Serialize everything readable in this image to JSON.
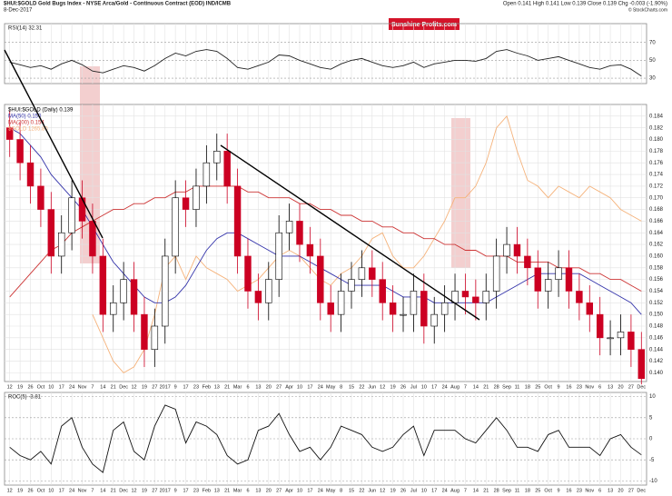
{
  "header": {
    "title": "$HUI:$GOLD Gold Bugs Index - NYSE Arca/Gold - Continuous Contract (EOD) IND/ICMB",
    "date": "8-Dec-2017",
    "quote": "Open 0.141 High 0.141 Low 0.139 Close 0.139 Chg -0.003 (-1.90%)",
    "credit": "© StockCharts.com",
    "logo": "Sunshine Profits.com"
  },
  "chart_data": [
    {
      "type": "candlestick",
      "name": "$HUI:$GOLD (Daily) 0.139",
      "up_color": "#000000",
      "down_color": "#cc0022",
      "categories": [
        "12",
        "19",
        "26",
        "Oct",
        "10",
        "17",
        "24",
        "Nov",
        "7",
        "14",
        "21",
        "Dec",
        "12",
        "19",
        "27",
        "2017",
        "9",
        "17",
        "23",
        "Feb",
        "13",
        "21",
        "Mar",
        "6",
        "13",
        "20",
        "27",
        "Apr",
        "10",
        "17",
        "24",
        "May",
        "8",
        "15",
        "22",
        "Jun",
        "12",
        "19",
        "26",
        "Jul",
        "10",
        "17",
        "24",
        "Aug",
        "7",
        "14",
        "21",
        "28",
        "Sep",
        "11",
        "18",
        "25",
        "Oct",
        "9",
        "16",
        "23",
        "Nov",
        "6",
        "13",
        "20",
        "27",
        "Dec"
      ],
      "open": [
        0.182,
        0.18,
        0.176,
        0.172,
        0.168,
        0.16,
        0.164,
        0.17,
        0.166,
        0.16,
        0.15,
        0.152,
        0.156,
        0.15,
        0.144,
        0.148,
        0.16,
        0.17,
        0.168,
        0.172,
        0.176,
        0.178,
        0.172,
        0.16,
        0.154,
        0.152,
        0.156,
        0.164,
        0.166,
        0.162,
        0.16,
        0.152,
        0.15,
        0.154,
        0.156,
        0.158,
        0.156,
        0.152,
        0.15,
        0.15,
        0.154,
        0.148,
        0.15,
        0.152,
        0.154,
        0.153,
        0.152,
        0.154,
        0.16,
        0.162,
        0.16,
        0.158,
        0.154,
        0.156,
        0.158,
        0.154,
        0.152,
        0.15,
        0.146,
        0.146,
        0.147,
        0.144
      ],
      "high": [
        0.185,
        0.183,
        0.179,
        0.175,
        0.171,
        0.167,
        0.173,
        0.173,
        0.169,
        0.163,
        0.155,
        0.159,
        0.159,
        0.153,
        0.151,
        0.163,
        0.173,
        0.173,
        0.175,
        0.179,
        0.181,
        0.181,
        0.175,
        0.163,
        0.157,
        0.159,
        0.167,
        0.169,
        0.169,
        0.165,
        0.163,
        0.155,
        0.157,
        0.159,
        0.161,
        0.161,
        0.159,
        0.155,
        0.153,
        0.157,
        0.157,
        0.153,
        0.155,
        0.157,
        0.157,
        0.156,
        0.157,
        0.163,
        0.165,
        0.165,
        0.163,
        0.161,
        0.159,
        0.161,
        0.161,
        0.157,
        0.155,
        0.153,
        0.149,
        0.15,
        0.15,
        0.147
      ],
      "low": [
        0.177,
        0.173,
        0.169,
        0.165,
        0.157,
        0.157,
        0.161,
        0.163,
        0.157,
        0.147,
        0.147,
        0.149,
        0.147,
        0.141,
        0.141,
        0.145,
        0.157,
        0.165,
        0.165,
        0.169,
        0.173,
        0.169,
        0.157,
        0.151,
        0.149,
        0.149,
        0.153,
        0.161,
        0.159,
        0.157,
        0.149,
        0.147,
        0.147,
        0.151,
        0.153,
        0.153,
        0.149,
        0.147,
        0.147,
        0.147,
        0.145,
        0.145,
        0.147,
        0.149,
        0.15,
        0.149,
        0.149,
        0.151,
        0.157,
        0.157,
        0.155,
        0.151,
        0.151,
        0.153,
        0.151,
        0.149,
        0.147,
        0.143,
        0.143,
        0.143,
        0.141,
        0.138
      ],
      "close": [
        0.18,
        0.176,
        0.172,
        0.168,
        0.16,
        0.164,
        0.17,
        0.166,
        0.16,
        0.15,
        0.152,
        0.156,
        0.15,
        0.144,
        0.148,
        0.16,
        0.17,
        0.168,
        0.172,
        0.176,
        0.178,
        0.172,
        0.16,
        0.154,
        0.152,
        0.156,
        0.164,
        0.166,
        0.162,
        0.16,
        0.152,
        0.15,
        0.154,
        0.156,
        0.158,
        0.156,
        0.152,
        0.15,
        0.15,
        0.154,
        0.148,
        0.15,
        0.152,
        0.154,
        0.153,
        0.152,
        0.154,
        0.16,
        0.162,
        0.16,
        0.158,
        0.154,
        0.156,
        0.158,
        0.154,
        0.152,
        0.15,
        0.146,
        0.146,
        0.147,
        0.144,
        0.139
      ],
      "series": [
        {
          "name": "MA(50) 0.150",
          "color": "#3333aa",
          "values": [
            0.182,
            0.181,
            0.179,
            0.177,
            0.174,
            0.172,
            0.17,
            0.168,
            0.165,
            0.162,
            0.159,
            0.157,
            0.155,
            0.153,
            0.152,
            0.152,
            0.153,
            0.155,
            0.158,
            0.161,
            0.163,
            0.164,
            0.164,
            0.163,
            0.162,
            0.161,
            0.16,
            0.16,
            0.16,
            0.159,
            0.158,
            0.157,
            0.156,
            0.155,
            0.155,
            0.155,
            0.155,
            0.154,
            0.153,
            0.153,
            0.153,
            0.152,
            0.152,
            0.152,
            0.152,
            0.152,
            0.152,
            0.153,
            0.154,
            0.155,
            0.156,
            0.157,
            0.157,
            0.157,
            0.157,
            0.157,
            0.156,
            0.155,
            0.154,
            0.153,
            0.152,
            0.15
          ]
        },
        {
          "name": "MA(200) 0.154",
          "color": "#cc3333",
          "values": [
            0.153,
            0.155,
            0.157,
            0.159,
            0.161,
            0.162,
            0.164,
            0.165,
            0.166,
            0.167,
            0.168,
            0.168,
            0.169,
            0.169,
            0.17,
            0.17,
            0.171,
            0.171,
            0.172,
            0.172,
            0.172,
            0.172,
            0.172,
            0.171,
            0.171,
            0.17,
            0.17,
            0.17,
            0.169,
            0.169,
            0.168,
            0.168,
            0.167,
            0.167,
            0.166,
            0.166,
            0.165,
            0.165,
            0.164,
            0.164,
            0.163,
            0.163,
            0.162,
            0.162,
            0.161,
            0.161,
            0.16,
            0.16,
            0.16,
            0.159,
            0.159,
            0.159,
            0.159,
            0.158,
            0.158,
            0.158,
            0.157,
            0.157,
            0.156,
            0.156,
            0.155,
            0.154
          ]
        },
        {
          "name": "$GOLD 1265.80",
          "color": "#f5b27a",
          "values": [
            null,
            null,
            null,
            null,
            null,
            null,
            null,
            null,
            0.15,
            0.146,
            0.142,
            0.14,
            0.141,
            0.144,
            0.15,
            0.158,
            0.16,
            0.156,
            0.16,
            0.158,
            0.157,
            0.156,
            0.154,
            0.155,
            0.156,
            0.158,
            0.16,
            0.161,
            0.16,
            0.158,
            0.156,
            0.155,
            0.157,
            0.158,
            0.16,
            0.163,
            0.164,
            0.16,
            0.158,
            0.158,
            0.16,
            0.163,
            0.166,
            0.17,
            0.17,
            0.172,
            0.176,
            0.182,
            0.184,
            0.178,
            0.173,
            0.172,
            0.17,
            0.172,
            0.171,
            0.17,
            0.172,
            0.171,
            0.17,
            0.168,
            0.167,
            0.166
          ]
        }
      ],
      "ylim": [
        0.1385,
        0.186
      ],
      "yticks": [
        {
          "value": 0.14,
          "label": "0.140"
        },
        {
          "value": 0.142,
          "label": "0.142"
        },
        {
          "value": 0.144,
          "label": "0.144"
        },
        {
          "value": 0.146,
          "label": "0.146"
        },
        {
          "value": 0.148,
          "label": "0.148"
        },
        {
          "value": 0.15,
          "label": "0.150"
        },
        {
          "value": 0.152,
          "label": "0.152"
        },
        {
          "value": 0.154,
          "label": "0.154"
        },
        {
          "value": 0.156,
          "label": "0.156"
        },
        {
          "value": 0.158,
          "label": "0.158"
        },
        {
          "value": 0.16,
          "label": "0.160"
        },
        {
          "value": 0.162,
          "label": "0.162"
        },
        {
          "value": 0.164,
          "label": "0.164"
        },
        {
          "value": 0.166,
          "label": "0.166"
        },
        {
          "value": 0.168,
          "label": "0.168"
        },
        {
          "value": 0.17,
          "label": "0.170"
        },
        {
          "value": 0.172,
          "label": "0.172"
        },
        {
          "value": 0.174,
          "label": "0.174"
        },
        {
          "value": 0.176,
          "label": "0.176"
        },
        {
          "value": 0.178,
          "label": "0.178"
        },
        {
          "value": 0.18,
          "label": "0.180"
        },
        {
          "value": 0.182,
          "label": "0.182"
        },
        {
          "value": 0.184,
          "label": "0.184"
        }
      ],
      "grid": true
    },
    {
      "type": "line",
      "series": [
        {
          "name": "RSI(14) 32.31",
          "color": "#222222",
          "values": [
            48,
            45,
            42,
            44,
            40,
            46,
            50,
            45,
            38,
            36,
            40,
            44,
            42,
            38,
            44,
            52,
            58,
            55,
            60,
            62,
            60,
            52,
            42,
            40,
            44,
            48,
            56,
            55,
            50,
            46,
            42,
            40,
            46,
            50,
            52,
            48,
            44,
            42,
            44,
            48,
            42,
            46,
            48,
            50,
            50,
            49,
            52,
            60,
            62,
            58,
            55,
            50,
            52,
            54,
            50,
            46,
            42,
            40,
            44,
            45,
            40,
            32.31
          ]
        }
      ],
      "ylim": [
        24,
        91
      ],
      "yticks": [
        30,
        50,
        70
      ],
      "grid": true
    },
    {
      "type": "line",
      "series": [
        {
          "name": "ROC(5) -3.81",
          "color": "#111111",
          "values": [
            -2,
            -4,
            -5,
            -3,
            -6,
            3,
            5,
            -2,
            -6,
            -8,
            2,
            4,
            -3,
            -5,
            3,
            8,
            7,
            -1,
            4,
            3,
            1,
            -4,
            -6,
            -5,
            2,
            3,
            6,
            1,
            -3,
            -2,
            -5,
            -2,
            3,
            2,
            1,
            -2,
            -3,
            -2,
            1,
            3,
            -4,
            2,
            2,
            2,
            0,
            -1,
            2,
            5,
            2,
            -2,
            -2,
            -3,
            1,
            2,
            -2,
            -2,
            -2,
            -4,
            0,
            1,
            -2,
            -3.81
          ]
        }
      ],
      "ylim": [
        -11,
        11
      ],
      "yticks": [
        -10,
        -5,
        0,
        5,
        10
      ],
      "grid": true
    }
  ]
}
